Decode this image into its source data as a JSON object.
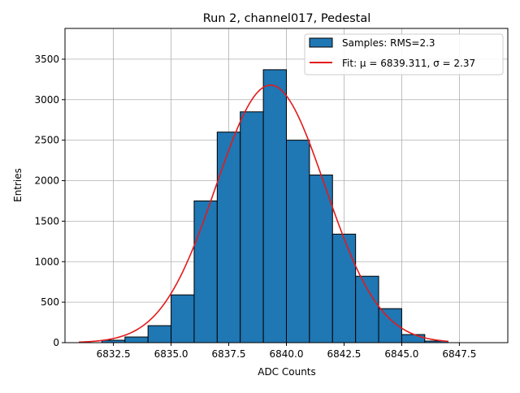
{
  "chart_data": {
    "type": "bar",
    "title": "Run 2, channel017, Pedestal",
    "xlabel": "ADC Counts",
    "ylabel": "Entries",
    "xlim": [
      6830.4,
      6849.6
    ],
    "ylim": [
      0,
      3880
    ],
    "xticks": [
      6832.5,
      6835.0,
      6837.5,
      6840.0,
      6842.5,
      6845.0,
      6847.5
    ],
    "xtick_labels": [
      "6832.5",
      "6835.0",
      "6837.5",
      "6840.0",
      "6842.5",
      "6845.0",
      "6847.5"
    ],
    "yticks": [
      0,
      500,
      1000,
      1500,
      2000,
      2500,
      3000,
      3500
    ],
    "ytick_labels": [
      "0",
      "500",
      "1000",
      "1500",
      "2000",
      "2500",
      "3000",
      "3500"
    ],
    "grid": true,
    "legend_position": "top-right",
    "bins": [
      {
        "x0": 6832.0,
        "x1": 6833.0,
        "count": 30
      },
      {
        "x0": 6833.0,
        "x1": 6834.0,
        "count": 70
      },
      {
        "x0": 6834.0,
        "x1": 6835.0,
        "count": 210
      },
      {
        "x0": 6835.0,
        "x1": 6836.0,
        "count": 590
      },
      {
        "x0": 6836.0,
        "x1": 6837.0,
        "count": 1750
      },
      {
        "x0": 6837.0,
        "x1": 6838.0,
        "count": 2600
      },
      {
        "x0": 6838.0,
        "x1": 6839.0,
        "count": 2850
      },
      {
        "x0": 6839.0,
        "x1": 6840.0,
        "count": 3370
      },
      {
        "x0": 6840.0,
        "x1": 6841.0,
        "count": 2500
      },
      {
        "x0": 6841.0,
        "x1": 6842.0,
        "count": 2070
      },
      {
        "x0": 6842.0,
        "x1": 6843.0,
        "count": 1340
      },
      {
        "x0": 6843.0,
        "x1": 6844.0,
        "count": 820
      },
      {
        "x0": 6844.0,
        "x1": 6845.0,
        "count": 420
      },
      {
        "x0": 6845.0,
        "x1": 6846.0,
        "count": 100
      },
      {
        "x0": 6846.0,
        "x1": 6847.0,
        "count": 20
      }
    ],
    "fit": {
      "mu": 6839.311,
      "sigma": 2.37,
      "amplitude": 3180,
      "x_range": [
        6831.0,
        6847.0
      ]
    },
    "series": [
      {
        "name": "Samples: RMS=2.3",
        "color": "#1f77b4"
      },
      {
        "name": "Fit: μ = 6839.311, σ = 2.37",
        "color": "#e41a1c"
      }
    ]
  }
}
